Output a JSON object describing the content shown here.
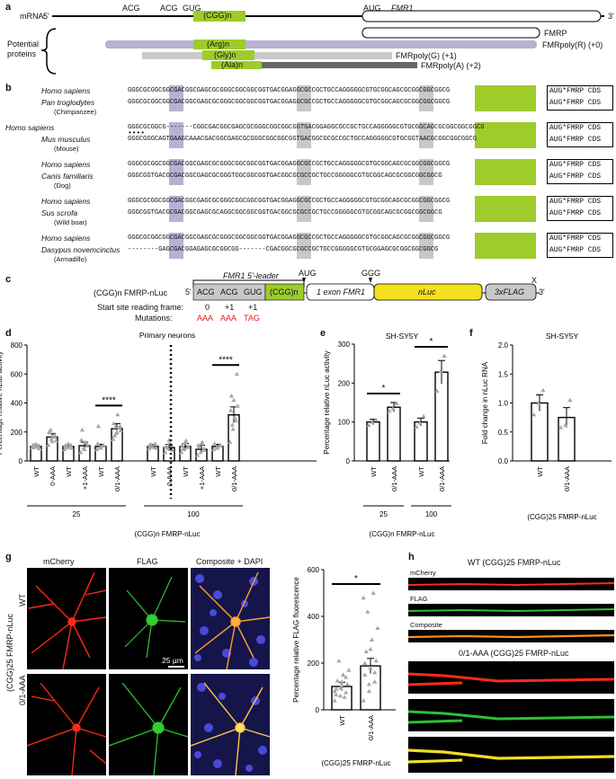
{
  "panel_a": {
    "label": "a",
    "mrna_label": "mRNA:",
    "five_prime": "5'",
    "three_prime": "3'",
    "codons": [
      "ACG",
      "ACG",
      "GUG"
    ],
    "cgg_repeat": "(CGG)n",
    "aug": "AUG",
    "gene": "FMR1",
    "potential_proteins_label": "Potential proteins",
    "proteins": [
      {
        "name": "FMRP",
        "frame": ""
      },
      {
        "name": "FMRpoly(R)",
        "frame": "(+0)",
        "repeat": "(Arg)n"
      },
      {
        "name": "FMRpoly(G)",
        "frame": "(+1)",
        "repeat": "(Gly)n"
      },
      {
        "name": "FMRpoly(A)",
        "frame": "(+2)",
        "repeat": "(Ala)n"
      }
    ],
    "colors": {
      "green": "#9dcc2b",
      "purple": "#b9b0d3",
      "gray": "#c9c9c9",
      "dark_gray": "#666666"
    }
  },
  "panel_b": {
    "label": "b",
    "cds_label": "AUG*FMRP CDS",
    "pairs": [
      {
        "sp1": "Homo sapiens",
        "sp2": "Pan troglodytes",
        "common": "(Chimpanzee)",
        "seq1": "GGGCGCGGCGGCGACGGCGAGCGCGGGCGGCGGCGGTGACGGAGGCGCCGCTGCCAGGGGGCGTGCGGCAGCGCGGCGGCGGCG",
        "seq2": "GGGCGCGGCGGCGACGGCGAGCGCGGGCGGCGGCGGTGACGGAGGCGCCGCTGCCAGGGGGCGTGCGGCAGCGCGGCGGCGGCG",
        "dots": ""
      },
      {
        "sp1": "Homo sapiens",
        "sp2": "Mus musculus",
        "common": "(Mouse)",
        "seq1": "GGGCGCGGCG-------CGGCGACGGCGAGCGCGGGCGGCGGCGGTGACGGAGGCGCCGCTGCCAGGGGGCGTGCGGCAGCGCGGCGGCGGCG",
        "seq2": "GGGCGGGCAGTGAAGCAAACGACGGCGAGCGCGGGCGGCGGCGGTGACGGCGCGCCGCTGCCAGGGGGCGTGCGGTAACGCGGCGGCGGCG",
        "dots": "••••"
      },
      {
        "sp1": "Homo sapiens",
        "sp2": "Canis familiaris",
        "common": "(Dog)",
        "seq1": "GGGCGCGGCGGCGACGGCGAGCGCGGGCGGCGGCGGTGACGGAGGCGCCGCTGCCAGGGGGCGTGCGGCAGCGCGGCGGCGGCG",
        "seq2": "GGGCGGTGACGCGACGGCGAGCGCGGGTGGCGGCGGTGACGGCGCGCCGCTGCCGGGGGCGTGCGGCAGCGCGGCGGCGGCG",
        "dots": ""
      },
      {
        "sp1": "Homo sapiens",
        "sp2": "Sus scrofa",
        "common": "(Wild boar)",
        "seq1": "GGGCGCGGCGGCGACGGCGAGCGCGGGCGGCGGCGGTGACGGAGGCGCCGCTGCCAGGGGGCGTGCGGCAGCGCGGCGGCGGCG",
        "seq2": "GGGCGGTGACGCGACGGCGAGCGCAGGCGGCGGCGGTGACGGCGCGCCGCTGCCGGGGGCGTGCGGCAGCGCGGCGGCGGCG",
        "dots": ""
      },
      {
        "sp1": "Homo sapiens",
        "sp2": "Dasypus novemcinctus",
        "common": "(Armadillo)",
        "seq1": "GGGCGCGGCGGCGACGGCGAGCGCGGGCGGCGGCGGTGACGGAGGCGCCGCTGCCAGGGGGCGTGCGGCAGCGCGGCGGCGGCG",
        "seq2": "--------GAGCGACGGAGAGCGCGGCGG-------CGACGGCGCGCCGCTGCCGGGGGCGTGCGGAGCGCGGCGGCGGCG",
        "dots": ""
      }
    ]
  },
  "panel_c": {
    "label": "c",
    "construct": "(CGG)n FMRP-nLuc",
    "leader": "FMR1 5'-leader",
    "five_prime": "5'",
    "three_prime": "3'",
    "codons": [
      "ACG",
      "ACG",
      "GUG"
    ],
    "cgg": "(CGG)n",
    "aug": "AUG",
    "ggg": "GGG",
    "x": "X",
    "exon": "1 exon FMR1",
    "nluc": "nLuc",
    "flag": "3xFLAG",
    "start_site_label": "Start site reading frame:",
    "frames": [
      "0",
      "+1",
      "+1"
    ],
    "mutations_label": "Mutations:",
    "mutations": [
      "AAA",
      "AAA",
      "TAG"
    ]
  },
  "panel_d": {
    "label": "d",
    "title": "Primary neurons",
    "ylabel": "Percentage relative nLuc activity",
    "xlabel": "(CGG)n FMRP-nLuc",
    "groups": [
      "25",
      "100"
    ],
    "sig": [
      "****",
      "****"
    ]
  },
  "panel_e": {
    "label": "e",
    "title": "SH-SY5Y",
    "ylabel": "Percentage relative nLuc activity",
    "xlabel": "(CGG)n FMRP-nLuc",
    "groups": [
      "25",
      "100"
    ],
    "sig": [
      "*",
      "*"
    ]
  },
  "panel_f": {
    "label": "f",
    "title": "SH-SY5Y",
    "ylabel": "Fold change in nLuc RNA",
    "xlabel": "(CGG)25 FMRP-nLuc"
  },
  "panel_g": {
    "label": "g",
    "channels": [
      "mCherry",
      "FLAG",
      "Composite + DAPI"
    ],
    "rows": [
      "WT",
      "0/1-AAA"
    ],
    "side_label": "(CGG)25 FMRP-nLuc",
    "scale_bar": "25 µm",
    "ylabel": "Percentage relative FLAG fluorescence",
    "xlabel": "(CGG)25 FMRP-nLuc",
    "sig": "*"
  },
  "panel_h": {
    "label": "h",
    "wt_title": "WT (CGG)25 FMRP-nLuc",
    "mut_title": "0/1-AAA (CGG)25 FMRP-nLuc",
    "channels": [
      "mCherry",
      "FLAG",
      "Composite"
    ]
  },
  "chart_data": [
    {
      "type": "bar",
      "panel": "d",
      "title": "Primary neurons",
      "ylabel": "Percentage relative nLuc activity",
      "xlabel": "(CGG)n FMRP-nLuc",
      "ylim": [
        0,
        800
      ],
      "yticks": [
        0,
        200,
        400,
        600,
        800
      ],
      "categories": [
        "WT",
        "0-AAA",
        "WT",
        "+1-AAA",
        "WT",
        "0/1-AAA",
        "WT",
        "0-AAA",
        "WT",
        "+1-AAA",
        "WT",
        "0/1-AAA"
      ],
      "groups": [
        {
          "name": "25",
          "count": 6
        },
        {
          "name": "100",
          "count": 6
        }
      ],
      "values": [
        100,
        165,
        100,
        105,
        100,
        222,
        100,
        92,
        100,
        80,
        100,
        318
      ],
      "errors": [
        10,
        25,
        12,
        25,
        15,
        35,
        14,
        22,
        20,
        28,
        15,
        55
      ],
      "points": [
        [
          92,
          98,
          105,
          110,
          118,
          88,
          95,
          102,
          85,
          108
        ],
        [
          110,
          150,
          180,
          200,
          135,
          165,
          195,
          172,
          140,
          215
        ],
        [
          80,
          95,
          110,
          105,
          120,
          88,
          92
        ],
        [
          60,
          90,
          120,
          145,
          80,
          105,
          215,
          130
        ],
        [
          80,
          95,
          108,
          120,
          90,
          105,
          240
        ],
        [
          150,
          190,
          230,
          260,
          200,
          240,
          175,
          320,
          210,
          235
        ],
        [
          85,
          100,
          120,
          110,
          95,
          90,
          115
        ],
        [
          60,
          85,
          110,
          100,
          145,
          75,
          95,
          125
        ],
        [
          60,
          80,
          95,
          110,
          130,
          100,
          85,
          140
        ],
        [
          40,
          60,
          85,
          110,
          120,
          75,
          95,
          130
        ],
        [
          80,
          95,
          110,
          120,
          90,
          105
        ],
        [
          130,
          220,
          280,
          350,
          420,
          600,
          450,
          300,
          380,
          250
        ]
      ],
      "significance": [
        {
          "from": 4,
          "to": 5,
          "label": "****"
        },
        {
          "from": 10,
          "to": 11,
          "label": "****"
        }
      ]
    },
    {
      "type": "bar",
      "panel": "e",
      "title": "SH-SY5Y",
      "ylabel": "Percentage relative nLuc activity",
      "xlabel": "(CGG)n FMRP-nLuc",
      "ylim": [
        0,
        300
      ],
      "yticks": [
        0,
        100,
        200,
        300
      ],
      "categories": [
        "WT",
        "0/1-AAA",
        "WT",
        "0/1-AAA"
      ],
      "groups": [
        {
          "name": "25",
          "count": 2
        },
        {
          "name": "100",
          "count": 2
        }
      ],
      "values": [
        100,
        138,
        100,
        228
      ],
      "errors": [
        7,
        12,
        10,
        30
      ],
      "points": [
        [
          92,
          100,
          106
        ],
        [
          128,
          135,
          148
        ],
        [
          88,
          98,
          115
        ],
        [
          180,
          230,
          270
        ]
      ],
      "significance": [
        {
          "from": 0,
          "to": 1,
          "label": "*"
        },
        {
          "from": 2,
          "to": 3,
          "label": "*"
        }
      ]
    },
    {
      "type": "bar",
      "panel": "f",
      "title": "SH-SY5Y",
      "ylabel": "Fold change in nLuc RNA",
      "xlabel": "(CGG)25 FMRP-nLuc",
      "ylim": [
        0,
        2.0
      ],
      "yticks": [
        0,
        0.5,
        1.0,
        1.5,
        2.0
      ],
      "categories": [
        "WT",
        "0/1-AAA"
      ],
      "values": [
        1.0,
        0.75
      ],
      "errors": [
        0.14,
        0.17
      ],
      "points": [
        [
          0.8,
          1.0,
          1.22
        ],
        [
          0.58,
          0.62,
          1.05
        ]
      ]
    },
    {
      "type": "bar",
      "panel": "g",
      "ylabel": "Percentage relative FLAG fluorescence",
      "xlabel": "(CGG)25 FMRP-nLuc",
      "ylim": [
        0,
        600
      ],
      "yticks": [
        0,
        200,
        400,
        600
      ],
      "categories": [
        "WT",
        "0/1-AAA"
      ],
      "values": [
        100,
        188
      ],
      "errors": [
        18,
        32
      ],
      "points": [
        [
          40,
          60,
          75,
          90,
          100,
          110,
          125,
          150,
          170,
          210,
          55,
          80,
          95,
          140,
          65,
          120
        ],
        [
          40,
          80,
          120,
          150,
          180,
          210,
          250,
          300,
          350,
          420,
          500,
          480,
          110,
          160,
          200,
          260
        ]
      ],
      "significance": [
        {
          "from": 0,
          "to": 1,
          "label": "*"
        }
      ]
    }
  ]
}
